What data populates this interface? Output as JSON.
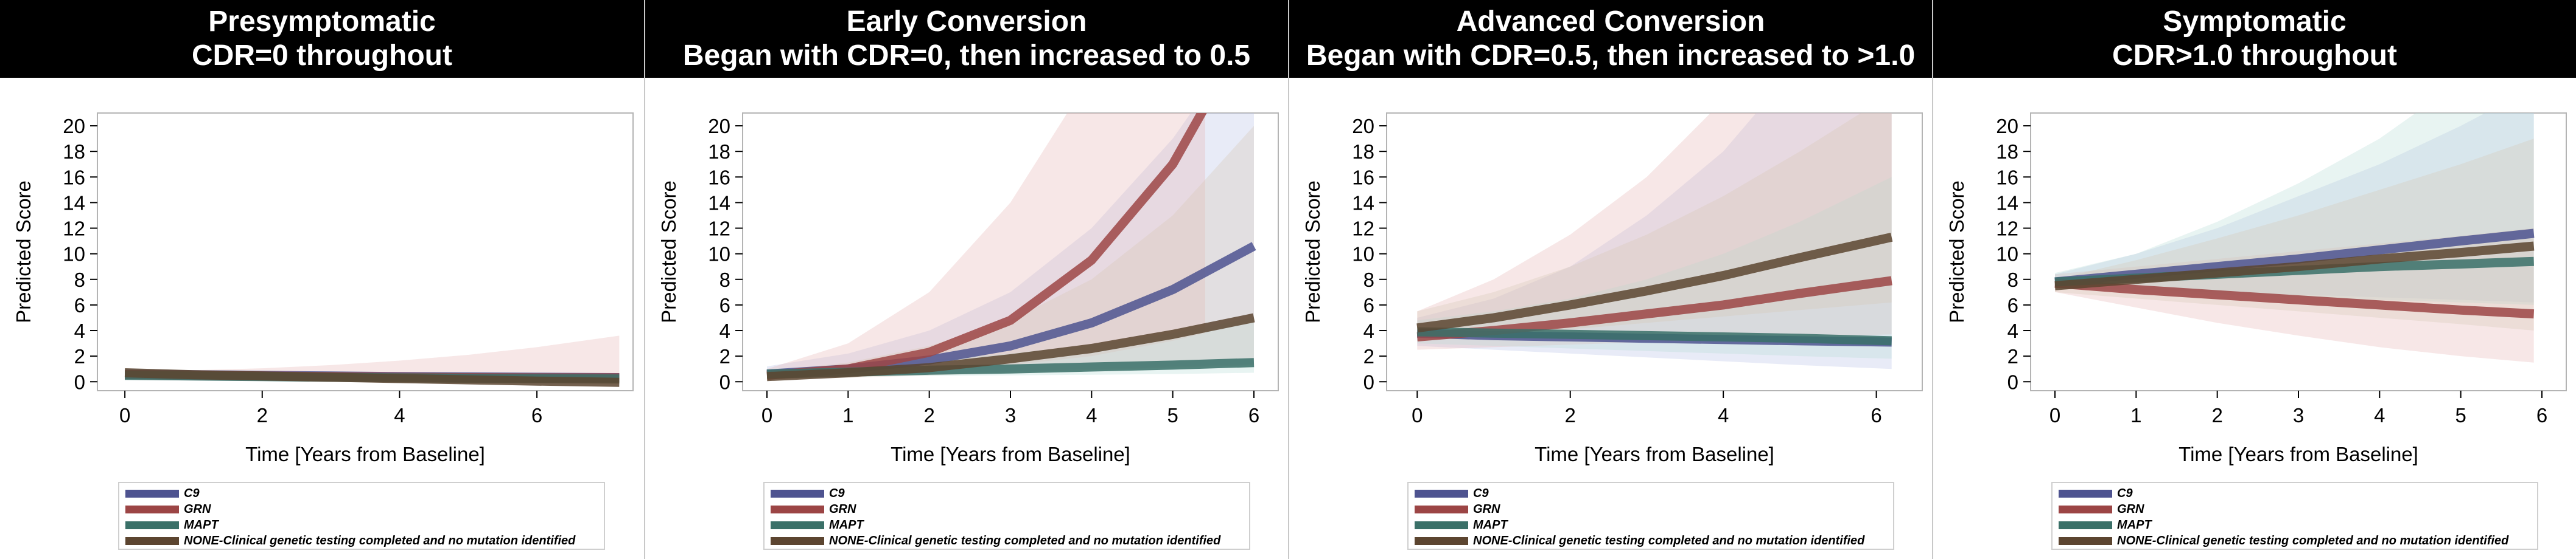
{
  "figure": {
    "series_colors": {
      "C9": "#4e5390",
      "GRN": "#9c4545",
      "MAPT": "#3a7068",
      "NONE-Clinical genetic testing completed and no mutation identified": "#5c4530"
    },
    "band_colors": {
      "C9": "#b8c0e6",
      "GRN": "#e6b4b4",
      "MAPT": "#b8dcd6",
      "NONE-Clinical genetic testing completed and no mutation identified": "#d7c8b4"
    }
  },
  "legend": {
    "items": [
      {
        "label": "C9"
      },
      {
        "label": "GRN"
      },
      {
        "label": "MAPT"
      },
      {
        "label": "NONE-Clinical genetic testing completed and no mutation identified"
      }
    ]
  },
  "chart_data": [
    {
      "type": "line",
      "title": "Presymptomatic",
      "subtitle": "CDR=0 throughout",
      "xlabel": "Time [Years from Baseline]",
      "ylabel": "Predicted Score",
      "xlim": [
        -0.4,
        7.4
      ],
      "ylim": [
        -0.7,
        21
      ],
      "xticks": [
        0,
        2,
        4,
        6
      ],
      "yticks": [
        0,
        2,
        4,
        6,
        8,
        10,
        12,
        14,
        16,
        18,
        20
      ],
      "legend_position": "bottom",
      "series": [
        {
          "name": "C9",
          "x": [
            0,
            1,
            2,
            3,
            4,
            5,
            6,
            7.2
          ],
          "y": [
            0.6,
            0.55,
            0.5,
            0.45,
            0.4,
            0.38,
            0.35,
            0.32
          ],
          "lower": [
            0.4,
            0.38,
            0.35,
            0.3,
            0.26,
            0.23,
            0.2,
            0.15
          ],
          "upper": [
            0.8,
            0.75,
            0.7,
            0.65,
            0.62,
            0.6,
            0.58,
            0.55
          ]
        },
        {
          "name": "GRN",
          "x": [
            0,
            1,
            2,
            3,
            4,
            5,
            6,
            7.2
          ],
          "y": [
            0.55,
            0.5,
            0.45,
            0.4,
            0.35,
            0.32,
            0.3,
            0.3
          ],
          "lower": [
            0.35,
            0.25,
            0.15,
            0.08,
            0.03,
            0.01,
            0,
            0
          ],
          "upper": [
            0.8,
            0.9,
            1.05,
            1.3,
            1.65,
            2.1,
            2.7,
            3.6
          ]
        },
        {
          "name": "MAPT",
          "x": [
            0,
            1,
            2,
            3,
            4,
            5,
            6,
            7.2
          ],
          "y": [
            0.5,
            0.45,
            0.4,
            0.35,
            0.3,
            0.27,
            0.25,
            0.22
          ],
          "lower": [
            0.35,
            0.3,
            0.25,
            0.2,
            0.15,
            0.12,
            0.1,
            0.08
          ],
          "upper": [
            0.7,
            0.65,
            0.6,
            0.55,
            0.52,
            0.5,
            0.48,
            0.45
          ]
        },
        {
          "name": "NONE-Clinical genetic testing completed and no mutation identified",
          "x": [
            0,
            1,
            2,
            3,
            4,
            5,
            6,
            7.2
          ],
          "y": [
            0.7,
            0.55,
            0.45,
            0.35,
            0.25,
            0.15,
            0.05,
            -0.05
          ],
          "lower": [
            0.5,
            0.35,
            0.25,
            0.15,
            0.05,
            0,
            -0.1,
            -0.2
          ],
          "upper": [
            0.9,
            0.75,
            0.65,
            0.55,
            0.45,
            0.35,
            0.25,
            0.15
          ]
        }
      ]
    },
    {
      "type": "line",
      "title": "Early Conversion",
      "subtitle": "Began with CDR=0, then increased to 0.5",
      "xlabel": "Time [Years from Baseline]",
      "ylabel": "Predicted Score",
      "xlim": [
        -0.3,
        6.3
      ],
      "ylim": [
        -0.7,
        21
      ],
      "xticks": [
        0,
        1,
        2,
        3,
        4,
        5,
        6
      ],
      "yticks": [
        0,
        2,
        4,
        6,
        8,
        10,
        12,
        14,
        16,
        18,
        20
      ],
      "legend_position": "bottom",
      "series": [
        {
          "name": "C9",
          "x": [
            0,
            1,
            2,
            3,
            4,
            5,
            6
          ],
          "y": [
            0.6,
            1.0,
            1.7,
            2.8,
            4.6,
            7.2,
            10.6
          ],
          "lower": [
            0.2,
            0.4,
            0.6,
            0.8,
            1.0,
            1.2,
            1.4
          ],
          "upper": [
            1.2,
            2.2,
            4.0,
            7.0,
            12.0,
            19.0,
            28.0
          ]
        },
        {
          "name": "GRN",
          "x": [
            0,
            1,
            2,
            3,
            4,
            5,
            5.4
          ],
          "y": [
            0.5,
            1.0,
            2.3,
            4.8,
            9.5,
            17.0,
            21.5
          ],
          "lower": [
            0.2,
            0.4,
            0.8,
            1.3,
            2.0,
            3.2,
            3.8
          ],
          "upper": [
            1.0,
            3.0,
            7.0,
            14.0,
            24.0,
            36.0,
            42.0
          ]
        },
        {
          "name": "MAPT",
          "x": [
            0,
            1,
            2,
            3,
            4,
            5,
            6
          ],
          "y": [
            0.6,
            0.75,
            0.9,
            1.0,
            1.15,
            1.3,
            1.5
          ],
          "lower": [
            0.3,
            0.4,
            0.45,
            0.5,
            0.55,
            0.6,
            0.7
          ],
          "upper": [
            1.0,
            1.3,
            1.7,
            2.2,
            2.9,
            3.8,
            5.0
          ]
        },
        {
          "name": "NONE-Clinical genetic testing completed and no mutation identified",
          "x": [
            0,
            1,
            2,
            3,
            4,
            5,
            6
          ],
          "y": [
            0.4,
            0.7,
            1.1,
            1.8,
            2.6,
            3.7,
            5.0
          ],
          "lower": [
            0.2,
            0.3,
            0.5,
            0.7,
            0.9,
            1.1,
            1.3
          ],
          "upper": [
            0.8,
            1.5,
            2.8,
            4.8,
            8.0,
            13.0,
            20.0
          ]
        }
      ]
    },
    {
      "type": "line",
      "title": "Advanced Conversion",
      "subtitle": "Began with CDR=0.5, then increased to >1.0",
      "xlabel": "Time [Years from Baseline]",
      "ylabel": "Predicted Score",
      "xlim": [
        -0.4,
        6.6
      ],
      "ylim": [
        -0.7,
        21
      ],
      "xticks": [
        0,
        2,
        4,
        6
      ],
      "yticks": [
        0,
        2,
        4,
        6,
        8,
        10,
        12,
        14,
        16,
        18,
        20
      ],
      "legend_position": "bottom",
      "series": [
        {
          "name": "C9",
          "x": [
            0,
            1,
            2,
            3,
            4,
            5,
            6.2
          ],
          "y": [
            3.8,
            3.6,
            3.5,
            3.4,
            3.3,
            3.2,
            3.1
          ],
          "lower": [
            2.8,
            2.5,
            2.2,
            1.9,
            1.6,
            1.3,
            1.0
          ],
          "upper": [
            5.0,
            6.5,
            9.0,
            13.0,
            18.0,
            25.0,
            36.0
          ]
        },
        {
          "name": "GRN",
          "x": [
            0,
            1,
            2,
            3,
            4,
            5,
            6.2
          ],
          "y": [
            3.5,
            4.0,
            4.6,
            5.3,
            6.0,
            6.9,
            7.9
          ],
          "lower": [
            2.5,
            2.7,
            2.9,
            3.1,
            3.3,
            3.5,
            3.7
          ],
          "upper": [
            5.5,
            8.0,
            11.5,
            16.0,
            22.0,
            30.0,
            42.0
          ]
        },
        {
          "name": "MAPT",
          "x": [
            0,
            1,
            2,
            3,
            4,
            5,
            6.2
          ],
          "y": [
            3.9,
            3.8,
            3.7,
            3.6,
            3.5,
            3.4,
            3.2
          ],
          "lower": [
            3.0,
            2.8,
            2.6,
            2.4,
            2.2,
            2.0,
            1.8
          ],
          "upper": [
            4.8,
            5.5,
            6.5,
            8.0,
            10.0,
            12.5,
            16.0
          ]
        },
        {
          "name": "NONE-Clinical genetic testing completed and no mutation identified",
          "x": [
            0,
            1,
            2,
            3,
            4,
            5,
            6.2
          ],
          "y": [
            4.2,
            5.0,
            6.0,
            7.1,
            8.3,
            9.7,
            11.3
          ],
          "lower": [
            3.2,
            3.6,
            4.1,
            4.6,
            5.1,
            5.6,
            6.2
          ],
          "upper": [
            5.5,
            7.0,
            9.0,
            11.5,
            14.5,
            18.0,
            22.5
          ]
        }
      ]
    },
    {
      "type": "line",
      "title": "Symptomatic",
      "subtitle": "CDR>1.0 throughout",
      "xlabel": "Time [Years from Baseline]",
      "ylabel": "Predicted Score",
      "xlim": [
        -0.3,
        6.3
      ],
      "ylim": [
        -0.7,
        21
      ],
      "xticks": [
        0,
        1,
        2,
        3,
        4,
        5,
        6
      ],
      "yticks": [
        0,
        2,
        4,
        6,
        8,
        10,
        12,
        14,
        16,
        18,
        20
      ],
      "legend_position": "bottom",
      "series": [
        {
          "name": "C9",
          "x": [
            0,
            1,
            2,
            3,
            4,
            5,
            5.9
          ],
          "y": [
            7.8,
            8.4,
            9.0,
            9.6,
            10.3,
            11.0,
            11.6
          ],
          "lower": [
            7.3,
            7.2,
            7.0,
            6.8,
            6.6,
            6.4,
            6.2
          ],
          "upper": [
            8.4,
            10.0,
            12.0,
            14.5,
            17.0,
            20.0,
            23.0
          ]
        },
        {
          "name": "GRN",
          "x": [
            0,
            1,
            2,
            3,
            4,
            5,
            5.9
          ],
          "y": [
            7.7,
            7.2,
            6.8,
            6.4,
            6.0,
            5.6,
            5.3
          ],
          "lower": [
            7.0,
            5.8,
            4.6,
            3.6,
            2.7,
            2.0,
            1.5
          ],
          "upper": [
            8.4,
            9.0,
            9.6,
            10.2,
            10.8,
            11.4,
            12.0
          ]
        },
        {
          "name": "MAPT",
          "x": [
            0,
            1,
            2,
            3,
            4,
            5,
            5.9
          ],
          "y": [
            7.8,
            8.1,
            8.4,
            8.7,
            9.0,
            9.2,
            9.4
          ],
          "lower": [
            7.3,
            7.0,
            6.8,
            6.6,
            6.4,
            6.2,
            6.0
          ],
          "upper": [
            8.5,
            10.0,
            12.5,
            15.5,
            19.0,
            23.5,
            28.0
          ]
        },
        {
          "name": "NONE-Clinical genetic testing completed and no mutation identified",
          "x": [
            0,
            1,
            2,
            3,
            4,
            5,
            5.9
          ],
          "y": [
            7.5,
            8.0,
            8.5,
            9.0,
            9.6,
            10.1,
            10.6
          ],
          "lower": [
            7.0,
            6.5,
            6.0,
            5.5,
            5.0,
            4.5,
            4.0
          ],
          "upper": [
            8.0,
            9.5,
            11.2,
            13.0,
            15.0,
            17.0,
            19.0
          ]
        }
      ]
    }
  ]
}
